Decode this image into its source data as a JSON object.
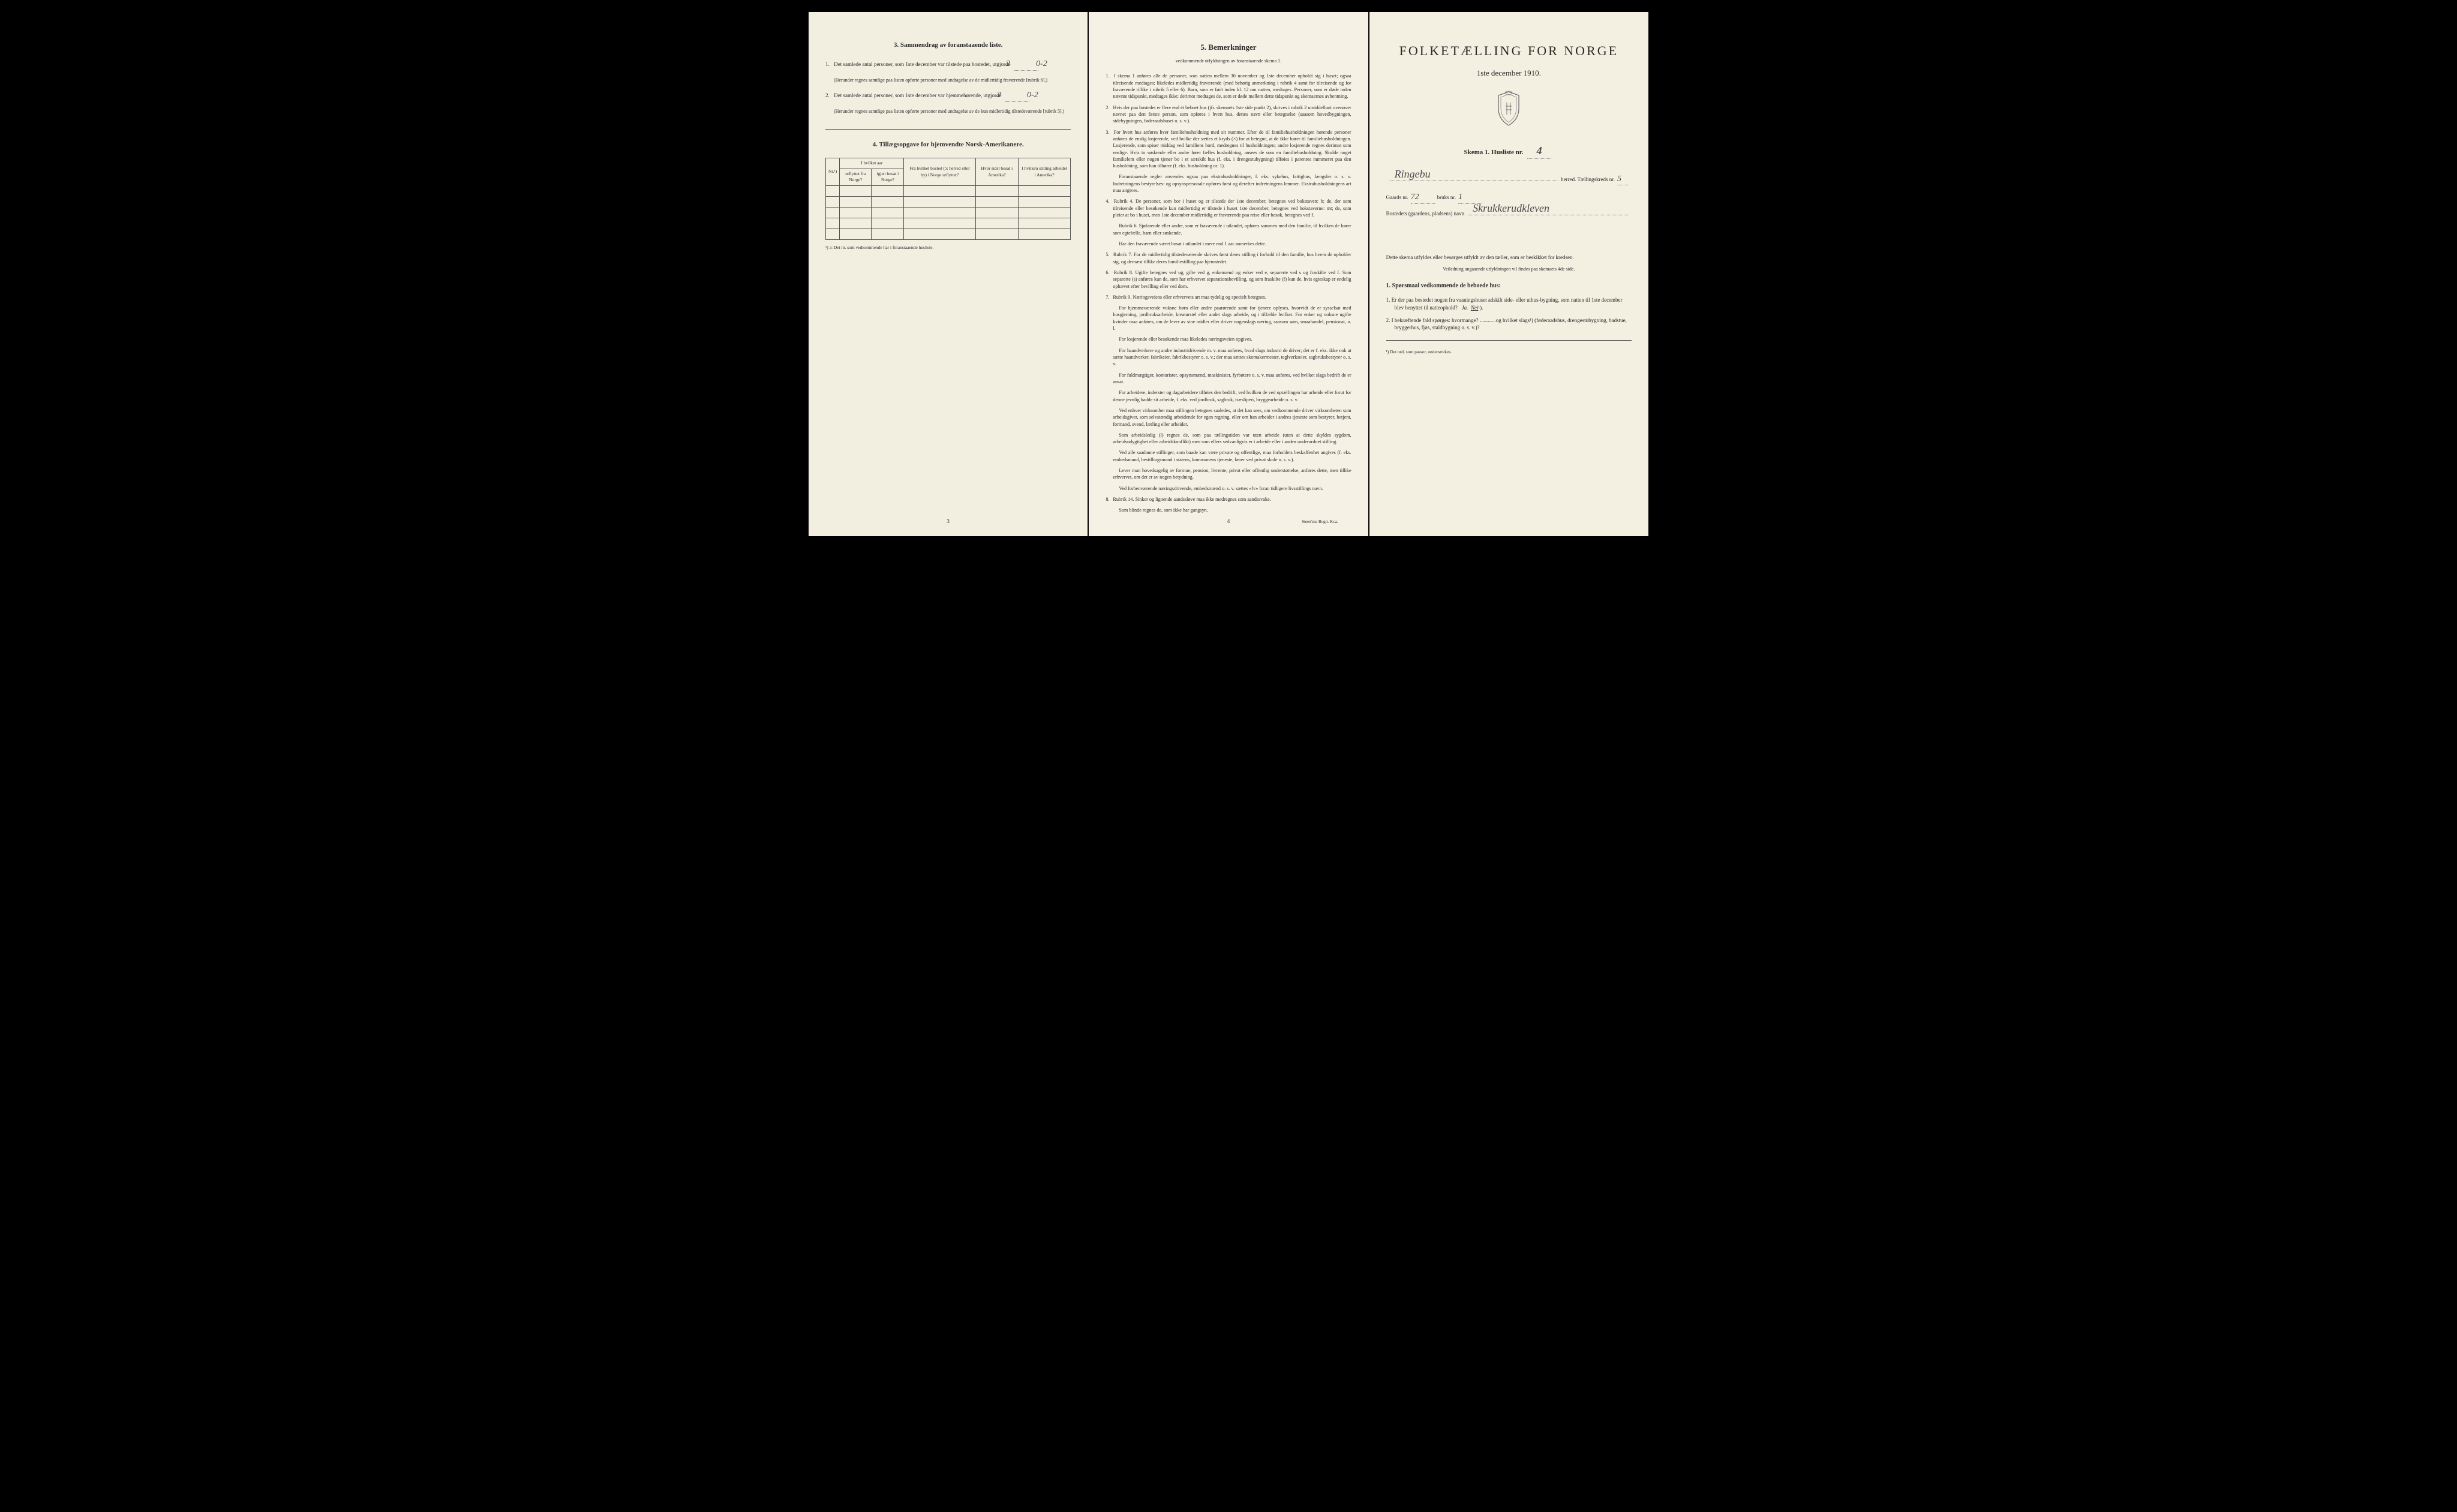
{
  "colors": {
    "paper": "#f4f0e4",
    "paperLeft": "#f2eee0",
    "paperCenter": "#f5f1e5",
    "paperRight": "#f3efe1",
    "text": "#2a2a2a",
    "border": "#555",
    "background": "#000"
  },
  "leftPage": {
    "section3": {
      "title": "3.   Sammendrag av foranstaaende liste.",
      "item1": {
        "num": "1.",
        "text": "Det samlede antal personer, som 1ste december var tilstede paa bostedet, utgjorde",
        "value": "2",
        "value2": "0-2",
        "note": "(Herunder regnes samtlige paa listen opførte personer med undtagelse av de midlertidig fraværende [rubrik 6].)"
      },
      "item2": {
        "num": "2.",
        "text": "Det samlede antal personer, som 1ste december var hjemmehørende, utgjorde",
        "value": "2",
        "value2": "0-2",
        "note": "(Herunder regnes samtlige paa listen opførte personer med undtagelse av de kun midlertidig tilstedeværende [rubrik 5].)"
      }
    },
    "section4": {
      "title": "4.  Tillægsopgave for hjemvendte Norsk-Amerikanere.",
      "table": {
        "headers": {
          "col0": "Nr.¹)",
          "col1_group": "I hvilket aar",
          "col1a": "utflyttet fra Norge?",
          "col1b": "igjen bosat i Norge?",
          "col2": "Fra hvilket bosted (ɔ: herred eller by) i Norge utflyttet?",
          "col3": "Hvor sidst bosat i Amerika?",
          "col4": "I hvilken stilling arbeidet i Amerika?"
        },
        "emptyRows": 5
      },
      "footnote": "¹) ɔ: Det nr. som vedkommende har i foranstaaende husliste."
    },
    "pageNum": "3"
  },
  "centerPage": {
    "title": "5.   Bemerkninger",
    "subtitle": "vedkommende utfyldningen av foranstaaende skema 1.",
    "rules": [
      {
        "n": "1.",
        "text": "I skema 1 anføres alle de personer, som natten mellem 30 november og 1ste december opholdt sig i huset; ogsaa tilreisende medtages; likeledes midlertidig fraværende (med behørig anmerkning i rubrik 4 samt for tilreisende og for fraværende tillike i rubrik 5 eller 6). Barn, som er født inden kl. 12 om natten, medtages. Personer, som er døde inden nævnte tidspunkt, medtages ikke; derimot medtages de, som er døde mellem dette tidspunkt og skemaernes avhentning."
      },
      {
        "n": "2.",
        "text": "Hvis der paa bostedet er flere end ét beboet hus (jfr. skemaets 1ste side punkt 2), skrives i rubrik 2 umiddelbart ovenover navnet paa den første person, som opføres i hvert hus, dettes navn eller betegnelse (saasom hovedbygningen, sidebygningen, føderaadshuset o. s. v.)."
      },
      {
        "n": "3.",
        "text": "For hvert hus anføres hver familiehusholdning med sit nummer. Efter de til familiehusholdningen hørende personer anføres de enslig losjerende, ved hvilke der sættes et kryds (×) for at betegne, at de ikke hører til familiehusholdningen. Losjerende, som spiser middag ved familiens bord, medregnes til husholdningen; andre losjerende regnes derimot som enslige. Hvis to søskende eller andre fører fælles husholdning, ansees de som en familiehusholdning. Skulde noget familielem eller nogen tjener bo i et særskilt hus (f. eks. i drengestubygning) tilføies i parentes nummeret paa den husholdning, som han tilhører (f. eks. husholdning nr. 1).",
        "paras": [
          "Foranstaaende regler anvendes ogsaa paa ekstrahusholdninger, f. eks. sykehus, fattighus, fængsler o. s. v. Indretningens bestyrelses- og opsynspersonale opføres først og derefter indretningens lemmer. Ekstrahusholdningens art maa angives."
        ]
      },
      {
        "n": "4.",
        "text": "Rubrik 4. De personer, som bor i huset og er tilstede der 1ste december, betegnes ved bokstaven: b; de, der som tilreisende eller besøkende kun midlertidig er tilstede i huset 1ste december, betegnes ved bokstaverne: mt; de, som pleier at bo i huset, men 1ste december midlertidig er fraværende paa reise eller besøk, betegnes ved f.",
        "paras": [
          "Rubrik 6. Sjøfarende eller andre, som er fraværende i utlandet, opføres sammen med den familie, til hvilken de hører som egtefælle, barn eller søskende.",
          "Har den fraværende været bosat i utlandet i mere end 1 aar anmerkes dette."
        ]
      },
      {
        "n": "5.",
        "text": "Rubrik 7. For de midlertidig tilstedeværende skrives først deres stilling i forhold til den familie, hos hvem de opholder sig, og dernæst tillike deres familiestilling paa hjemstedet."
      },
      {
        "n": "6.",
        "text": "Rubrik 8. Ugifte betegnes ved ug, gifte ved g, enkemænd og enker ved e, separerte ved s og fraskilte ved f. Som separerte (s) anføres kun de, som har erhvervet separationsbevilling, og som fraskilte (f) kun de, hvis egteskap er endelig ophævet efter bevilling eller ved dom."
      },
      {
        "n": "7.",
        "text": "Rubrik 9. Næringsveiens eller erhvervets art maa tydelig og specielt betegnes.",
        "paras": [
          "For hjemmeværende voksne børn eller andre paarørende samt for tjenere oplyses, hvorvidt de er sysselsat med husgjerning, jordbruksarbeide, kreaturstel eller andet slags arbeide, og i tilfælde hvilket. For enker og voksne ugifte kvinder maa anføres, om de lever av sine midler eller driver nogenslags næring, saasom søm, smaahandel, pensionat, o. l.",
          "For losjerende eller besøkende maa likeledes næringsveien opgives.",
          "For haandverkere og andre industridrivende m. v. maa anføres, hvad slags industri de driver; det er f. eks. ikke nok at sætte haandverker, fabrikeier, fabrikbestyrer o. s. v.; der maa sættes skomakermester, teglverkseier, sagbruksbestyrer o. s. v.",
          "For fuldmægtiger, kontorister, opsynsmænd, maskinister, fyrbøtere o. s. v. maa anføres, ved hvilket slags bedrift de er ansat.",
          "For arbeidere, inderster og dagarbeidere tilføies den bedrift, ved hvilken de ved optællingen har arbeide eller forut for denne jevnlig hadde sit arbeide, f. eks. ved jordbruk, sagbruk, træsliperi, bryggearbeide o. s. v.",
          "Ved enhver virksomhet maa stillingen betegnes saaledes, at det kan sees, om vedkommende driver virksomheten som arbeidsgiver, som selvstændig arbeidende for egen regning, eller om han arbeider i andres tjeneste som bestyrer, betjent, formand, svend, lærling eller arbeider.",
          "Som arbeidsledig (l) regnes de, som paa tællingstiden var uten arbeide (uten at dette skyldes sygdom, arbeidsudygtighet eller arbeidskonflikt) men som ellers sedvanligvis er i arbeide eller i anden underordnet stilling.",
          "Ved alle saadanne stillinger, som baade kan være private og offentlige, maa forholdets beskaffenhet angives (f. eks. embedsmand, bestillingsmand i statens, kommunens tjeneste, lærer ved privat skole o. s. v.).",
          "Lever man hovedsagelig av formue, pension, livrente, privat eller offentlig understøttelse, anføres dette, men tillike erhvervet, om det er av nogen betydning.",
          "Ved forhenværende næringsdrivende, embedsmænd o. s. v. sættes «fv» foran tidligere livsstillings navn."
        ]
      },
      {
        "n": "8.",
        "text": "Rubrik 14. Sinker og lignende aandssløve maa ikke medregnes som aandssvake.",
        "paras": [
          "Som blinde regnes de, som ikke har gangsyn."
        ]
      }
    ],
    "pageNum": "4",
    "printer": "Steen'ske Bogtr.  Kr.a."
  },
  "rightPage": {
    "mainTitle": "FOLKETÆLLING FOR NORGE",
    "subTitle": "1ste december 1910.",
    "skemaLine": {
      "prefix": "Skema 1.   Husliste nr.",
      "value": "4"
    },
    "line1": {
      "hw": "Ringebu",
      "suffix": "herred.  Tællingskreds nr.",
      "value": "5"
    },
    "line2": {
      "prefix": "Gaards nr.",
      "v1": "72",
      "mid": "bruks nr.",
      "v2": "1"
    },
    "line3": {
      "prefix": "Bostedets (gaardens, pladsens) navn",
      "hw": "Skrukkerudkleven"
    },
    "bodyText": "Dette skema utfyldes eller besørges utfyldt av den tæller, som er beskikket for kredsen.",
    "smallNote": "Veiledning angaaende utfyldningen vil findes paa skemaets 4de side.",
    "qSection": {
      "title": "1. Spørsmaal vedkommende de beboede hus:",
      "q1": {
        "num": "1.",
        "text": "Er der paa bostedet nogen fra vaaningshuset adskilt side- eller uthus-bygning, som natten til 1ste december blev benyttet til natteophold?   Ja.  Nei¹).",
        "answer": "Nei"
      },
      "q2": {
        "num": "2.",
        "text": "I bekræftende fald spørges: hvormange? ............og hvilket slags¹) (føderaadshus, drengestubygning, badstue, bryggerhus, fjøs, staldbygning o. s. v.)?"
      }
    },
    "footnote": "¹) Det ord, som passer, understrekes."
  }
}
